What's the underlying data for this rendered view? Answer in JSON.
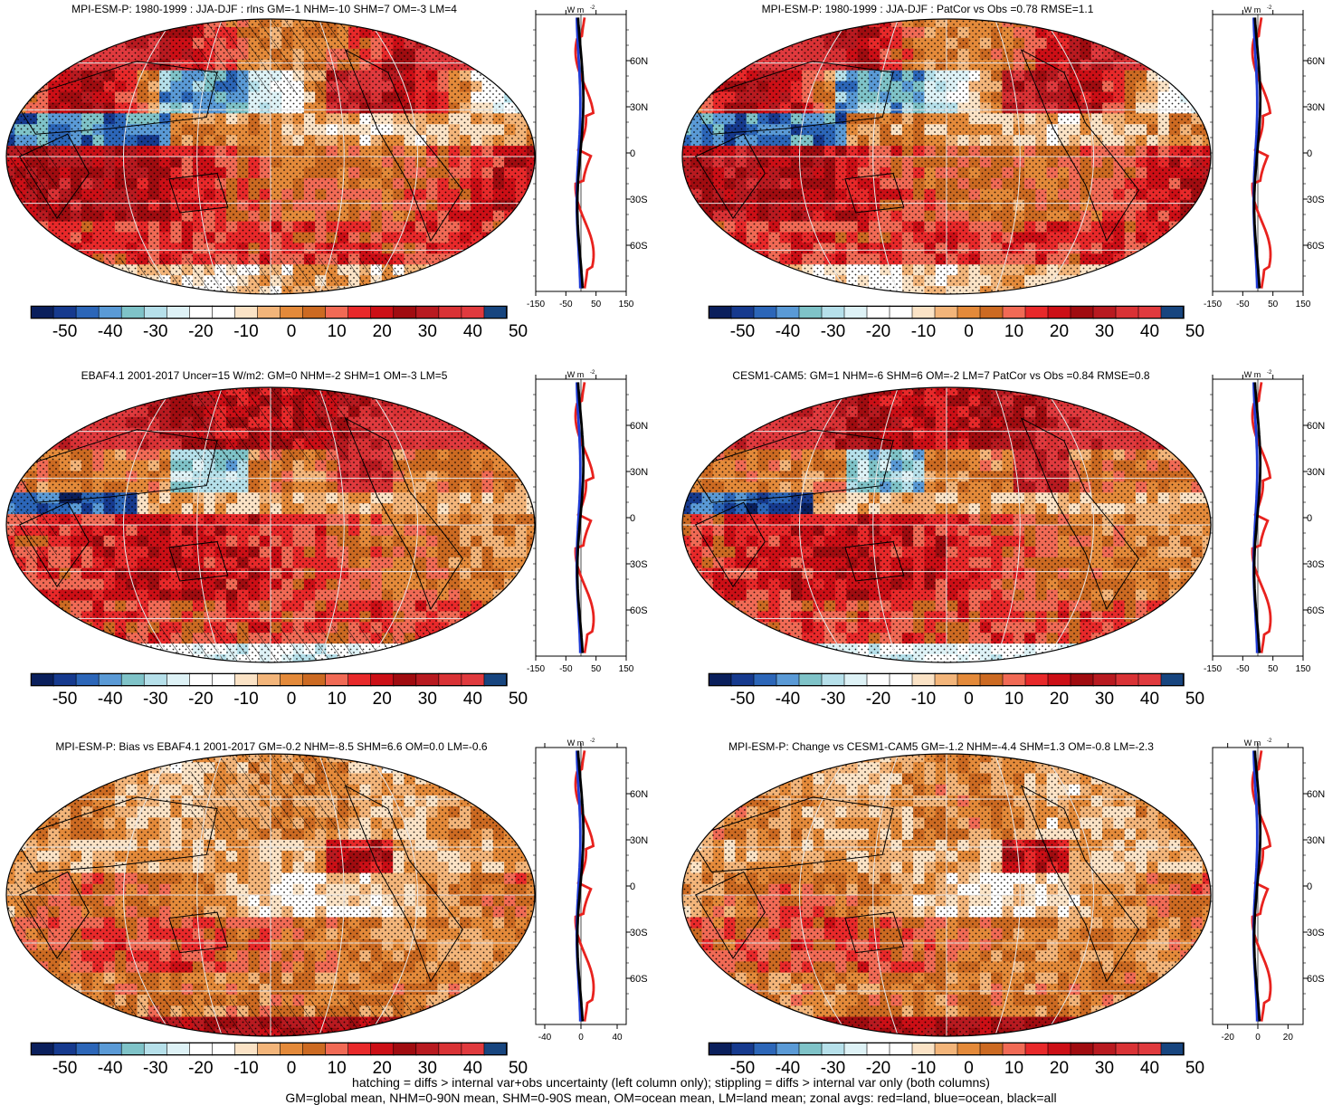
{
  "colorbar": {
    "colors": [
      "#0a1f5c",
      "#163a8e",
      "#2c66b8",
      "#5a9ad6",
      "#7fc3c8",
      "#b6e0ea",
      "#def2f6",
      "#ffffff",
      "#ffffff",
      "#fbe3c6",
      "#f3b57a",
      "#e48a3a",
      "#cc6a22",
      "#f16a55",
      "#e8292a",
      "#cc0f16",
      "#a00c10",
      "#b81a20",
      "#d93235",
      "#e03a3e",
      "#17457f"
    ],
    "tick_labels": [
      "-50",
      "-40",
      "-30",
      "-20",
      "-10",
      "0",
      "10",
      "20",
      "30",
      "40",
      "50"
    ]
  },
  "zonal_units": "W m",
  "zonal_units_sup": "-2",
  "lat_labels": [
    "60N",
    "30N",
    "0",
    "30S",
    "60S"
  ],
  "panels": [
    {
      "title": "MPI-ESM-P: 1980-1999 : JJA-DJF : rlns GM=-1 NHM=-10 SHM=7 OM=-3 LM=4",
      "zonal_xlim": [
        -150,
        150
      ],
      "zonal_xticks": [
        "-150",
        "-50",
        "50",
        "150"
      ],
      "zonal_xtick_values": [
        -150,
        -50,
        50,
        150
      ],
      "hatched": true,
      "pattern": "a"
    },
    {
      "title": "MPI-ESM-P: 1980-1999 : JJA-DJF : PatCor vs Obs =0.78 RMSE=1.1",
      "zonal_xlim": [
        -150,
        150
      ],
      "zonal_xticks": [
        "-150",
        "-50",
        "50",
        "150"
      ],
      "zonal_xtick_values": [
        -150,
        -50,
        50,
        150
      ],
      "hatched": false,
      "pattern": "a"
    },
    {
      "title": "EBAF4.1 2001-2017 Uncer=15 W/m2: GM=0 NHM=-2 SHM=1 OM=-3 LM=5",
      "zonal_xlim": [
        -150,
        150
      ],
      "zonal_xticks": [
        "-150",
        "-50",
        "50",
        "150"
      ],
      "zonal_xtick_values": [
        -150,
        -50,
        50,
        150
      ],
      "hatched": true,
      "pattern": "b"
    },
    {
      "title": "CESM1-CAM5: GM=1 NHM=-6 SHM=6 OM=-2 LM=7 PatCor vs Obs =0.84 RMSE=0.8",
      "zonal_xlim": [
        -150,
        150
      ],
      "zonal_xticks": [
        "-150",
        "-50",
        "50",
        "150"
      ],
      "zonal_xtick_values": [
        -150,
        -50,
        50,
        150
      ],
      "hatched": false,
      "pattern": "b"
    },
    {
      "title": "MPI-ESM-P: Bias vs EBAF4.1 2001-2017 GM=-0.2 NHM=-8.5 SHM=6.6 OM=0.0 LM=-0.6",
      "zonal_xlim": [
        -50,
        50
      ],
      "zonal_xticks": [
        "-40",
        "0",
        "40"
      ],
      "zonal_xtick_values": [
        -40,
        0,
        40
      ],
      "hatched": true,
      "pattern": "c"
    },
    {
      "title": "MPI-ESM-P: Change vs CESM1-CAM5 GM=-1.2 NHM=-4.4 SHM=1.3 OM=-0.8 LM=-2.3",
      "zonal_xlim": [
        -30,
        30
      ],
      "zonal_xticks": [
        "-20",
        "0",
        "20"
      ],
      "zonal_xtick_values": [
        -20,
        0,
        20
      ],
      "hatched": false,
      "pattern": "c"
    }
  ],
  "footer": {
    "line1": "hatching = diffs > internal var+obs uncertainty (left column only); stippling = diffs > internal var only (both columns)",
    "line2": "GM=global mean, NHM=0-90N mean, SHM=0-90S mean, OM=ocean mean, LM=land mean; zonal avgs: red=land, blue=ocean, black=all"
  }
}
